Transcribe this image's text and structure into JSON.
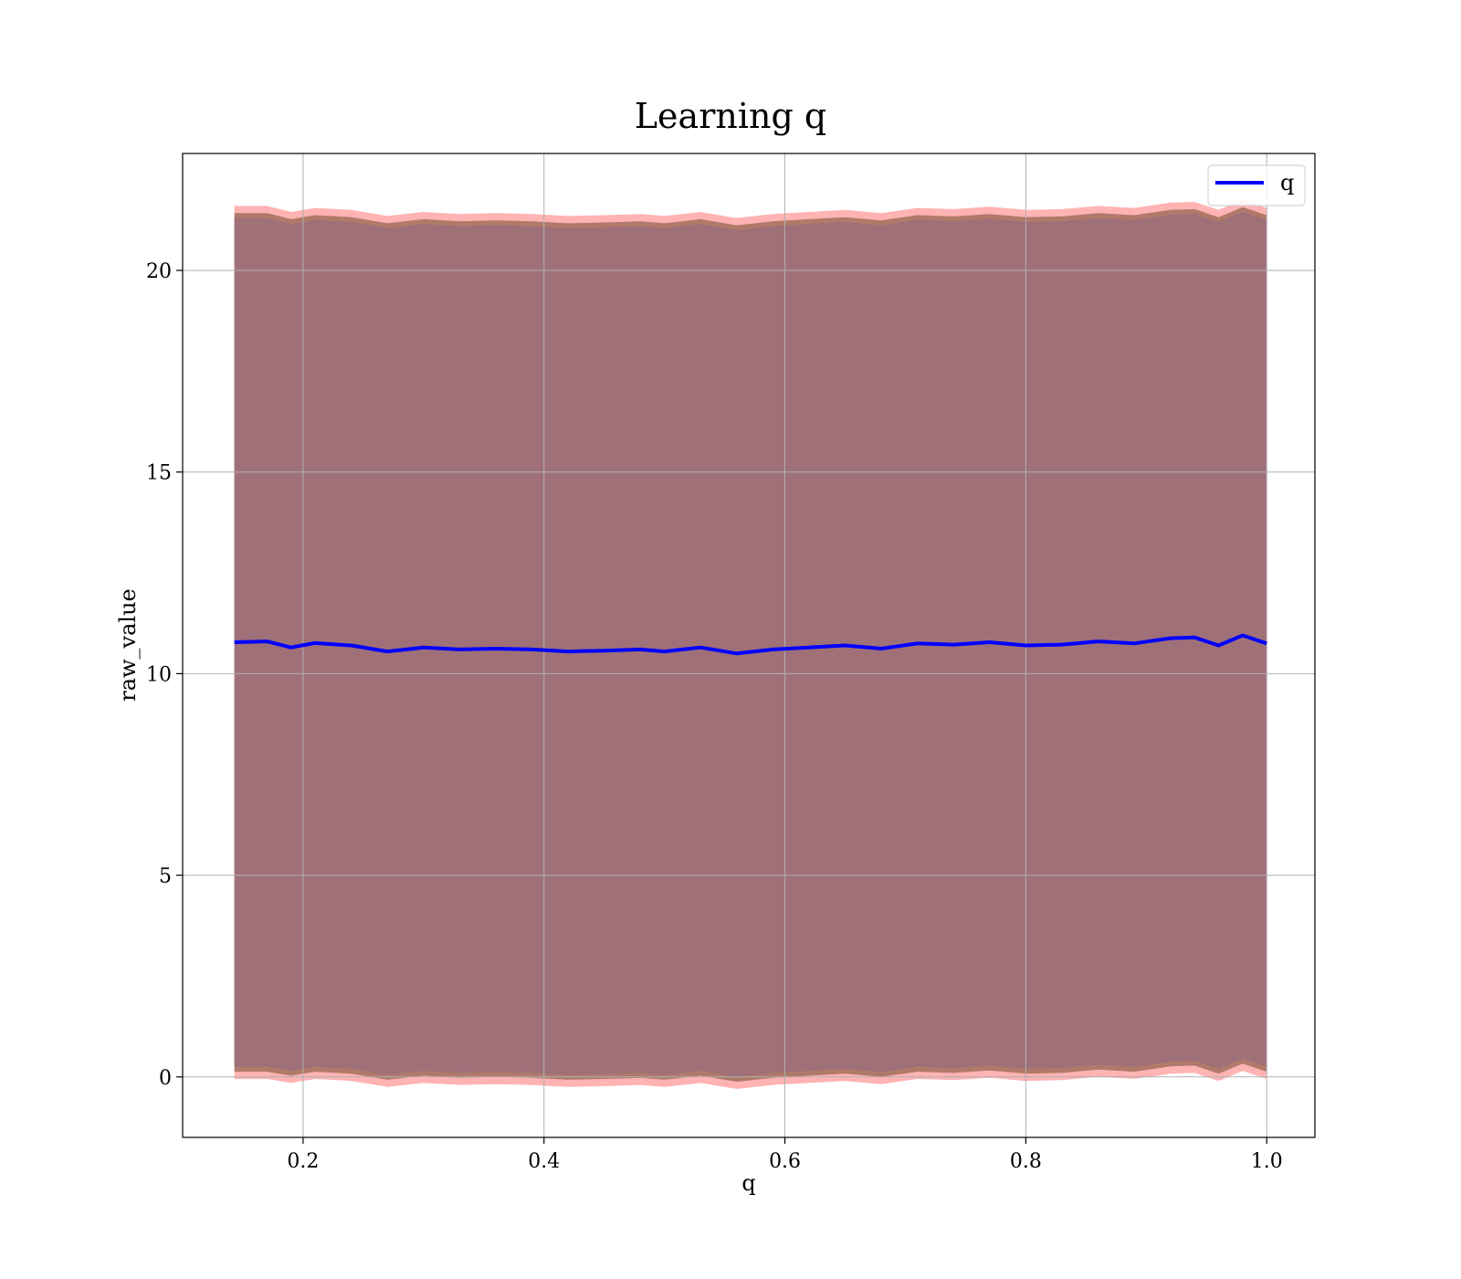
{
  "chart_data": {
    "type": "line",
    "title": "Learning q",
    "xlabel": "q",
    "ylabel": "raw_value",
    "xlim": [
      0.1,
      1.04
    ],
    "ylim": [
      -1.5,
      22.9
    ],
    "xticks": [
      0.2,
      0.4,
      0.6,
      0.8,
      1.0
    ],
    "xtick_labels": [
      "0.2",
      "0.4",
      "0.6",
      "0.8",
      "1.0"
    ],
    "yticks": [
      0,
      5,
      10,
      15,
      20
    ],
    "ytick_labels": [
      "0",
      "5",
      "10",
      "15",
      "20"
    ],
    "grid": true,
    "legend": {
      "placement": "top-right",
      "entries": [
        "q"
      ]
    },
    "colors": {
      "line": "#0000ff",
      "band_outer": "#ffb3b3",
      "band_mid": "#b07a6a",
      "band_inner": "#a07078",
      "grid": "#b0b0b0"
    },
    "series": [
      {
        "name": "q",
        "x": [
          0.143,
          0.17,
          0.19,
          0.21,
          0.24,
          0.27,
          0.3,
          0.33,
          0.36,
          0.39,
          0.42,
          0.45,
          0.48,
          0.5,
          0.53,
          0.56,
          0.59,
          0.62,
          0.65,
          0.68,
          0.71,
          0.74,
          0.77,
          0.8,
          0.83,
          0.86,
          0.89,
          0.92,
          0.94,
          0.96,
          0.98,
          1.0
        ],
        "y": [
          10.78,
          10.8,
          10.65,
          10.76,
          10.7,
          10.55,
          10.65,
          10.6,
          10.62,
          10.6,
          10.55,
          10.57,
          10.6,
          10.55,
          10.65,
          10.5,
          10.6,
          10.65,
          10.7,
          10.62,
          10.75,
          10.72,
          10.78,
          10.7,
          10.72,
          10.8,
          10.75,
          10.88,
          10.9,
          10.7,
          10.95,
          10.75
        ],
        "band_outer_upper": [
          21.6,
          21.6,
          21.45,
          21.55,
          21.5,
          21.35,
          21.45,
          21.4,
          21.42,
          21.4,
          21.35,
          21.37,
          21.4,
          21.35,
          21.45,
          21.3,
          21.4,
          21.45,
          21.5,
          21.42,
          21.55,
          21.52,
          21.58,
          21.5,
          21.52,
          21.6,
          21.55,
          21.68,
          21.7,
          21.5,
          21.75,
          21.55
        ],
        "band_outer_lower": [
          -0.05,
          -0.05,
          -0.15,
          -0.05,
          -0.1,
          -0.25,
          -0.15,
          -0.2,
          -0.18,
          -0.2,
          -0.25,
          -0.23,
          -0.2,
          -0.25,
          -0.15,
          -0.3,
          -0.2,
          -0.15,
          -0.1,
          -0.18,
          -0.05,
          -0.08,
          -0.02,
          -0.1,
          -0.08,
          0.0,
          -0.05,
          0.08,
          0.1,
          -0.1,
          0.15,
          -0.05
        ],
        "band_inner_upper": [
          21.3,
          21.3,
          21.15,
          21.25,
          21.2,
          21.05,
          21.15,
          21.1,
          21.12,
          21.1,
          21.05,
          21.07,
          21.1,
          21.05,
          21.15,
          21.0,
          21.1,
          21.15,
          21.2,
          21.12,
          21.25,
          21.22,
          21.28,
          21.2,
          21.22,
          21.3,
          21.25,
          21.38,
          21.4,
          21.2,
          21.45,
          21.25
        ],
        "band_inner_lower": [
          0.25,
          0.25,
          0.15,
          0.25,
          0.2,
          0.05,
          0.15,
          0.1,
          0.12,
          0.1,
          0.05,
          0.07,
          0.1,
          0.05,
          0.15,
          0.0,
          0.1,
          0.15,
          0.2,
          0.12,
          0.25,
          0.22,
          0.28,
          0.2,
          0.22,
          0.3,
          0.25,
          0.38,
          0.4,
          0.2,
          0.45,
          0.25
        ]
      }
    ]
  }
}
